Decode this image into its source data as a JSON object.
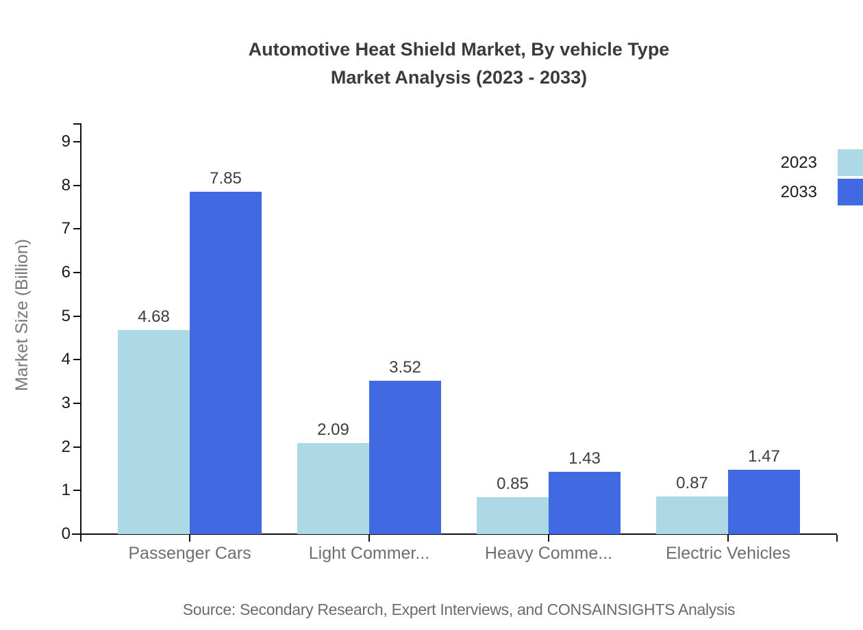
{
  "title": {
    "line1": "Automotive Heat Shield Market, By vehicle Type",
    "line2": "Market Analysis (2023 - 2033)"
  },
  "source": "Source: Secondary Research, Expert Interviews, and CONSAINSIGHTS Analysis",
  "colors": {
    "series_2023": "#add8e6",
    "series_2033": "#4169e1",
    "axis": "#111111",
    "title_text": "#3b3b3b",
    "category_label": "#6e6e6e",
    "background": "#ffffff"
  },
  "chart_data": {
    "type": "bar",
    "title": "Automotive Heat Shield Market, By vehicle Type Market Analysis (2023 - 2033)",
    "categories": [
      "Passenger Cars",
      "Light Commer...",
      "Heavy Comme...",
      "Electric Vehicles"
    ],
    "series": [
      {
        "name": "2023",
        "color": "#add8e6",
        "values": [
          4.68,
          2.09,
          0.85,
          0.87
        ]
      },
      {
        "name": "2033",
        "color": "#4169e1",
        "values": [
          7.85,
          3.52,
          1.43,
          1.47
        ]
      }
    ],
    "xlabel": "",
    "ylabel": "Market Size (Billion)",
    "ylim": [
      0,
      9
    ],
    "yticks": [
      0,
      1,
      2,
      3,
      4,
      5,
      6,
      7,
      8,
      9
    ],
    "grid": false,
    "legend_position": "top-right",
    "value_labels": true
  }
}
